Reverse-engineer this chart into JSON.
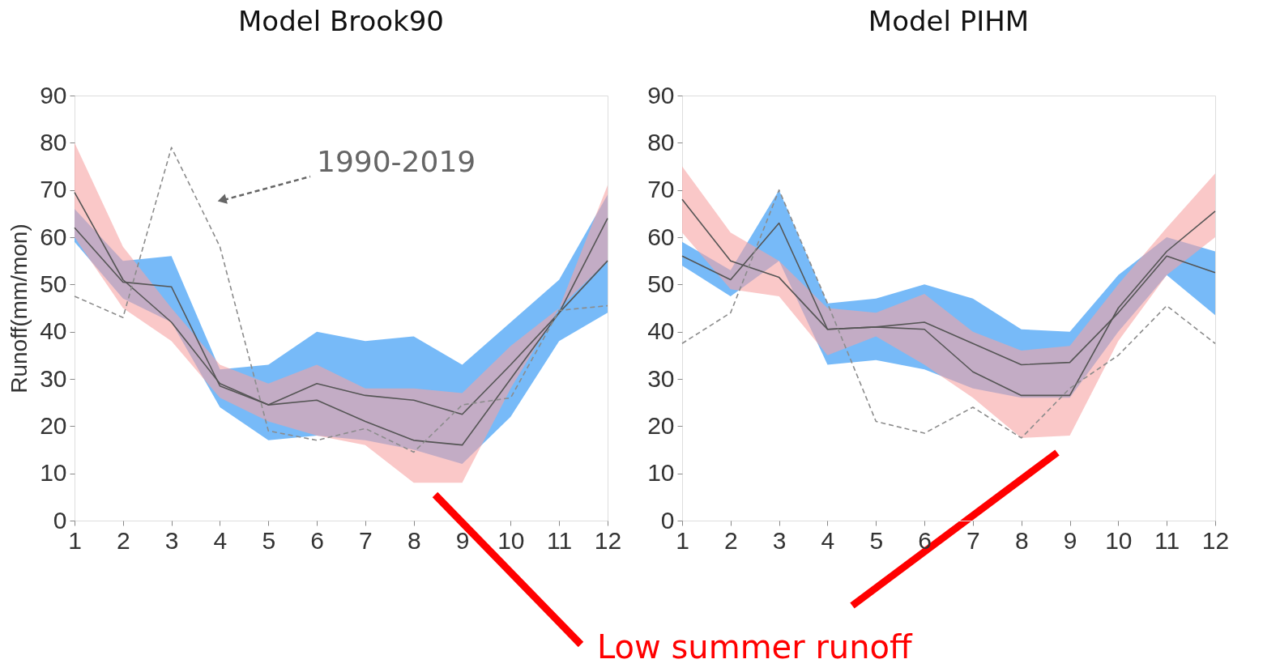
{
  "chart_data": [
    {
      "type": "line",
      "title": "Model Brook90",
      "ylabel": "Runoff(mm/mon)",
      "x": [
        1,
        2,
        3,
        4,
        5,
        6,
        7,
        8,
        9,
        10,
        11,
        12
      ],
      "xlim": [
        1,
        12
      ],
      "xticks": [
        1,
        2,
        3,
        4,
        5,
        6,
        7,
        8,
        9,
        10,
        11,
        12
      ],
      "ylim": [
        0,
        90
      ],
      "yticks": [
        0,
        10,
        20,
        30,
        40,
        50,
        60,
        70,
        80,
        90
      ],
      "grid": false,
      "series": [
        {
          "type": "area",
          "color": "#4aa3f5",
          "values": [
            null,
            null,
            null,
            null,
            null,
            null,
            null,
            null,
            null,
            null,
            null,
            null
          ],
          "lower": [
            59,
            47,
            42,
            24,
            17,
            18,
            17,
            15,
            12,
            22,
            38,
            44
          ],
          "upper": [
            66,
            55,
            56,
            32,
            33,
            40,
            38,
            39,
            33,
            42,
            51,
            69
          ]
        },
        {
          "type": "area",
          "color": "#f7a3a3",
          "values": [
            null,
            null,
            null,
            null,
            null,
            null,
            null,
            null,
            null,
            null,
            null,
            null
          ],
          "lower": [
            60,
            45,
            38,
            26,
            21,
            18,
            16,
            8,
            8,
            28,
            45,
            55
          ],
          "upper": [
            80,
            58,
            45,
            33,
            29,
            33,
            28,
            28,
            27,
            37,
            45,
            71
          ]
        },
        {
          "color": "#555555",
          "values": [
            62,
            50.5,
            49.5,
            28.5,
            24.5,
            29,
            26.5,
            25.5,
            22.5,
            33,
            44,
            55
          ]
        },
        {
          "color": "#555555",
          "values": [
            69.5,
            51,
            42,
            29,
            24.5,
            25.5,
            21,
            17,
            16,
            30,
            44,
            64
          ]
        },
        {
          "color": "#8c8c8c",
          "values": [
            47.5,
            43,
            79,
            58,
            19,
            17,
            19.5,
            14.5,
            24.5,
            26,
            44.5,
            45.5
          ],
          "line_style": "dashed"
        }
      ],
      "annotations": [
        "1990-2019",
        "Low summer runoff"
      ]
    },
    {
      "type": "line",
      "title": "Model PIHM",
      "x": [
        1,
        2,
        3,
        4,
        5,
        6,
        7,
        8,
        9,
        10,
        11,
        12
      ],
      "xlim": [
        1,
        12
      ],
      "xticks": [
        1,
        2,
        3,
        4,
        5,
        6,
        7,
        8,
        9,
        10,
        11,
        12
      ],
      "ylim": [
        0,
        90
      ],
      "yticks": [
        0,
        10,
        20,
        30,
        40,
        50,
        60,
        70,
        80,
        90
      ],
      "grid": false,
      "series": [
        {
          "type": "area",
          "color": "#4aa3f5",
          "values": [
            null,
            null,
            null,
            null,
            null,
            null,
            null,
            null,
            null,
            null,
            null,
            null
          ],
          "lower": [
            54,
            47.5,
            55,
            33,
            34,
            32,
            28,
            26,
            26,
            40,
            52,
            43.5
          ],
          "upper": [
            59,
            53,
            70,
            46,
            47,
            50,
            47,
            40.5,
            40,
            52,
            60,
            57
          ]
        },
        {
          "type": "area",
          "color": "#f7a3a3",
          "values": [
            null,
            null,
            null,
            null,
            null,
            null,
            null,
            null,
            null,
            null,
            null,
            null
          ],
          "lower": [
            61,
            49,
            47.5,
            35,
            39,
            33,
            26,
            17.5,
            18,
            38,
            52,
            60
          ],
          "upper": [
            75,
            61,
            55,
            45,
            44,
            48,
            40,
            36,
            37,
            50,
            62,
            73.5
          ]
        },
        {
          "color": "#555555",
          "values": [
            56,
            51,
            63,
            40.5,
            41,
            42,
            37.5,
            33,
            33.5,
            44,
            56,
            52.5
          ]
        },
        {
          "color": "#555555",
          "values": [
            68,
            55,
            51.5,
            40.5,
            41,
            40.5,
            31.5,
            26.5,
            26.5,
            45,
            57,
            65.5
          ]
        },
        {
          "color": "#8c8c8c",
          "values": [
            37.5,
            44,
            70,
            46,
            21,
            18.5,
            24,
            17.5,
            28,
            35,
            45.5,
            37.5
          ],
          "line_style": "dashed"
        }
      ]
    }
  ]
}
